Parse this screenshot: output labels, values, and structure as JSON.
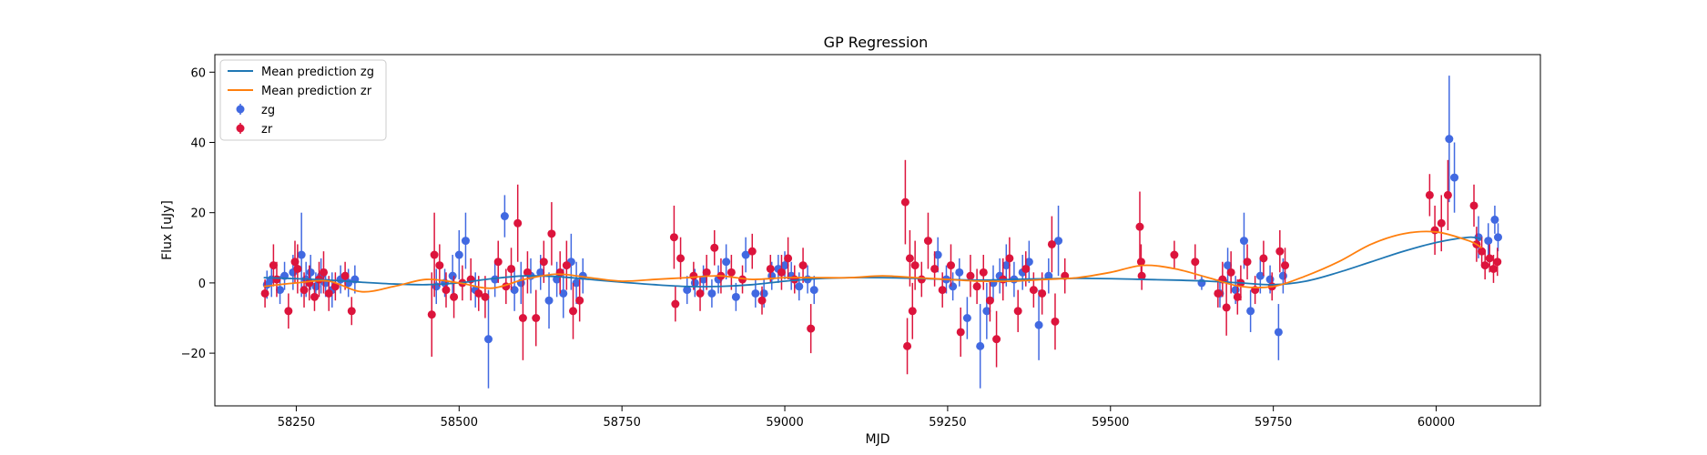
{
  "chart_data": {
    "type": "scatter",
    "title": "GP Regression",
    "xlabel": "MJD",
    "ylabel": "Flux [uJy]",
    "xlim": [
      58125,
      60160
    ],
    "ylim": [
      -35,
      65
    ],
    "xticks": [
      58250,
      58500,
      58750,
      59000,
      59250,
      59500,
      59750,
      60000
    ],
    "yticks": [
      -20,
      0,
      20,
      40,
      60
    ],
    "grid": false,
    "legend_position": "top-left",
    "lines": [
      {
        "name": "Mean prediction zg",
        "color": "#1f77b4",
        "x": [
          58200,
          58250,
          58300,
          58350,
          58400,
          58450,
          58500,
          58550,
          58600,
          58650,
          58700,
          58750,
          58800,
          58850,
          58900,
          58950,
          59000,
          59050,
          59100,
          59150,
          59200,
          59250,
          59300,
          59350,
          59400,
          59450,
          59500,
          59550,
          59600,
          59650,
          59700,
          59750,
          59800,
          59850,
          59900,
          59950,
          60000,
          60050,
          60070
        ],
        "y": [
          1.5,
          1.2,
          0.8,
          0.2,
          -0.3,
          -0.5,
          0.0,
          1.2,
          2.0,
          1.8,
          1.0,
          0.2,
          -0.5,
          -1.0,
          -1.0,
          -0.5,
          0.5,
          1.2,
          1.5,
          1.5,
          1.3,
          1.0,
          0.8,
          1.0,
          1.2,
          1.3,
          1.2,
          1.0,
          0.8,
          0.5,
          0.0,
          -0.5,
          0.5,
          3.0,
          6.0,
          9.0,
          11.5,
          13.0,
          12.5
        ]
      },
      {
        "name": "Mean prediction zr",
        "color": "#ff7f0e",
        "x": [
          58200,
          58250,
          58300,
          58350,
          58400,
          58450,
          58500,
          58550,
          58600,
          58650,
          58700,
          58750,
          58800,
          58850,
          58900,
          58950,
          59000,
          59050,
          59100,
          59150,
          59200,
          59250,
          59300,
          59350,
          59400,
          59450,
          59500,
          59550,
          59600,
          59650,
          59700,
          59750,
          59800,
          59850,
          59900,
          59950,
          60000,
          60050,
          60070
        ],
        "y": [
          -1.0,
          0.0,
          0.5,
          -2.5,
          -1.0,
          1.0,
          0.0,
          -1.5,
          1.0,
          2.5,
          1.5,
          0.5,
          1.0,
          1.5,
          2.0,
          1.0,
          1.5,
          1.5,
          1.5,
          2.0,
          1.5,
          1.0,
          0.5,
          0.5,
          1.0,
          1.5,
          3.0,
          5.0,
          4.0,
          1.5,
          -1.0,
          -1.0,
          2.0,
          6.0,
          11.0,
          14.0,
          14.5,
          12.0,
          10.0
        ]
      }
    ],
    "series": [
      {
        "name": "zg",
        "color": "#4169e1",
        "points": [
          [
            58205,
            -0.5,
            4
          ],
          [
            58212,
            1,
            5
          ],
          [
            58225,
            -2,
            4
          ],
          [
            58232,
            2,
            4
          ],
          [
            58245,
            3,
            5
          ],
          [
            58258,
            8,
            12
          ],
          [
            58265,
            1,
            5
          ],
          [
            58272,
            3,
            5
          ],
          [
            58280,
            -1,
            4
          ],
          [
            58288,
            2,
            5
          ],
          [
            58295,
            0,
            4
          ],
          [
            58305,
            -2,
            5
          ],
          [
            58318,
            1,
            4
          ],
          [
            58330,
            0,
            4
          ],
          [
            58340,
            1,
            4
          ],
          [
            58465,
            -1,
            5
          ],
          [
            58478,
            0,
            4
          ],
          [
            58490,
            2,
            6
          ],
          [
            58500,
            8,
            7
          ],
          [
            58510,
            12,
            8
          ],
          [
            58525,
            -2,
            5
          ],
          [
            58545,
            -16,
            14
          ],
          [
            58555,
            1,
            5
          ],
          [
            58570,
            19,
            6
          ],
          [
            58585,
            -2,
            6
          ],
          [
            58595,
            0,
            6
          ],
          [
            58610,
            2,
            5
          ],
          [
            58625,
            3,
            5
          ],
          [
            58638,
            -5,
            8
          ],
          [
            58650,
            1,
            5
          ],
          [
            58660,
            -3,
            7
          ],
          [
            58672,
            6,
            8
          ],
          [
            58680,
            0,
            6
          ],
          [
            58690,
            2,
            5
          ],
          [
            58850,
            -2,
            4
          ],
          [
            58862,
            0,
            4
          ],
          [
            58875,
            1,
            4
          ],
          [
            58888,
            -3,
            4
          ],
          [
            58898,
            1,
            4
          ],
          [
            58910,
            6,
            5
          ],
          [
            58925,
            -4,
            4
          ],
          [
            58940,
            8,
            5
          ],
          [
            58955,
            -3,
            4
          ],
          [
            58968,
            -3,
            4
          ],
          [
            58980,
            2,
            4
          ],
          [
            58990,
            4,
            4
          ],
          [
            59000,
            5,
            4
          ],
          [
            59010,
            2,
            4
          ],
          [
            59022,
            -1,
            4
          ],
          [
            59035,
            1,
            4
          ],
          [
            59045,
            -2,
            4
          ],
          [
            59235,
            8,
            5
          ],
          [
            59248,
            1,
            4
          ],
          [
            59258,
            -1,
            4
          ],
          [
            59268,
            3,
            4
          ],
          [
            59280,
            -10,
            6
          ],
          [
            59300,
            -18,
            12
          ],
          [
            59310,
            -8,
            8
          ],
          [
            59320,
            0,
            5
          ],
          [
            59330,
            2,
            5
          ],
          [
            59340,
            5,
            6
          ],
          [
            59352,
            1,
            5
          ],
          [
            59365,
            3,
            5
          ],
          [
            59375,
            6,
            6
          ],
          [
            59390,
            -12,
            10
          ],
          [
            59405,
            2,
            5
          ],
          [
            59420,
            12,
            10
          ],
          [
            59640,
            0,
            2
          ],
          [
            59668,
            -3,
            4
          ],
          [
            59680,
            5,
            5
          ],
          [
            59692,
            -2,
            4
          ],
          [
            59705,
            12,
            8
          ],
          [
            59715,
            -8,
            6
          ],
          [
            59730,
            2,
            5
          ],
          [
            59745,
            1,
            4
          ],
          [
            59758,
            -14,
            8
          ],
          [
            59765,
            2,
            5
          ],
          [
            60020,
            41,
            18
          ],
          [
            60028,
            30,
            10
          ],
          [
            60065,
            13,
            6
          ],
          [
            60080,
            12,
            5
          ],
          [
            60090,
            18,
            4
          ],
          [
            60095,
            13,
            4
          ]
        ]
      },
      {
        "name": "zr",
        "color": "#dc143c",
        "points": [
          [
            58202,
            -3,
            4
          ],
          [
            58215,
            5,
            6
          ],
          [
            58220,
            1,
            5
          ],
          [
            58238,
            -8,
            5
          ],
          [
            58248,
            6,
            6
          ],
          [
            58252,
            4,
            7
          ],
          [
            58262,
            -2,
            5
          ],
          [
            58270,
            0,
            5
          ],
          [
            58278,
            -4,
            4
          ],
          [
            58285,
            1,
            5
          ],
          [
            58292,
            3,
            6
          ],
          [
            58300,
            -3,
            5
          ],
          [
            58310,
            -1,
            4
          ],
          [
            58325,
            2,
            4
          ],
          [
            58335,
            -8,
            4
          ],
          [
            58458,
            -9,
            12
          ],
          [
            58462,
            8,
            12
          ],
          [
            58470,
            5,
            6
          ],
          [
            58480,
            -2,
            5
          ],
          [
            58492,
            -4,
            6
          ],
          [
            58505,
            0,
            5
          ],
          [
            58518,
            1,
            6
          ],
          [
            58530,
            -3,
            5
          ],
          [
            58540,
            -4,
            6
          ],
          [
            58560,
            6,
            6
          ],
          [
            58572,
            -1,
            5
          ],
          [
            58580,
            4,
            6
          ],
          [
            58590,
            17,
            11
          ],
          [
            58598,
            -10,
            12
          ],
          [
            58605,
            3,
            6
          ],
          [
            58618,
            -10,
            8
          ],
          [
            58630,
            6,
            6
          ],
          [
            58642,
            14,
            9
          ],
          [
            58655,
            3,
            6
          ],
          [
            58665,
            5,
            7
          ],
          [
            58675,
            -8,
            8
          ],
          [
            58685,
            -5,
            6
          ],
          [
            58830,
            13,
            9
          ],
          [
            58832,
            -6,
            5
          ],
          [
            58840,
            7,
            6
          ],
          [
            58860,
            2,
            4
          ],
          [
            58870,
            -3,
            5
          ],
          [
            58880,
            3,
            5
          ],
          [
            58892,
            10,
            5
          ],
          [
            58902,
            2,
            5
          ],
          [
            58918,
            3,
            5
          ],
          [
            58935,
            1,
            4
          ],
          [
            58950,
            9,
            5
          ],
          [
            58965,
            -5,
            4
          ],
          [
            58978,
            4,
            4
          ],
          [
            58995,
            3,
            5
          ],
          [
            59005,
            7,
            6
          ],
          [
            59015,
            1,
            4
          ],
          [
            59028,
            5,
            5
          ],
          [
            59040,
            -13,
            7
          ],
          [
            59185,
            23,
            12
          ],
          [
            59188,
            -18,
            8
          ],
          [
            59192,
            7,
            8
          ],
          [
            59196,
            -8,
            8
          ],
          [
            59200,
            5,
            7
          ],
          [
            59210,
            1,
            5
          ],
          [
            59220,
            12,
            8
          ],
          [
            59230,
            4,
            5
          ],
          [
            59242,
            -2,
            5
          ],
          [
            59255,
            5,
            6
          ],
          [
            59270,
            -14,
            7
          ],
          [
            59285,
            2,
            6
          ],
          [
            59295,
            -1,
            5
          ],
          [
            59305,
            3,
            5
          ],
          [
            59315,
            -5,
            6
          ],
          [
            59325,
            -16,
            8
          ],
          [
            59335,
            1,
            6
          ],
          [
            59345,
            7,
            6
          ],
          [
            59358,
            -8,
            6
          ],
          [
            59370,
            4,
            5
          ],
          [
            59382,
            -2,
            5
          ],
          [
            59395,
            -3,
            6
          ],
          [
            59410,
            11,
            8
          ],
          [
            59415,
            -11,
            8
          ],
          [
            59430,
            2,
            5
          ],
          [
            59545,
            16,
            10
          ],
          [
            59547,
            6,
            5
          ],
          [
            59548,
            2,
            4
          ],
          [
            59598,
            8,
            4
          ],
          [
            59630,
            6,
            5
          ],
          [
            59665,
            -3,
            4
          ],
          [
            59672,
            1,
            5
          ],
          [
            59678,
            -7,
            8
          ],
          [
            59685,
            3,
            6
          ],
          [
            59695,
            -4,
            5
          ],
          [
            59700,
            0,
            5
          ],
          [
            59710,
            6,
            5
          ],
          [
            59722,
            -2,
            4
          ],
          [
            59735,
            7,
            5
          ],
          [
            59748,
            -1,
            4
          ],
          [
            59760,
            9,
            6
          ],
          [
            59768,
            5,
            5
          ],
          [
            59990,
            25,
            6
          ],
          [
            59998,
            15,
            7
          ],
          [
            60008,
            17,
            8
          ],
          [
            60018,
            25,
            10
          ],
          [
            60058,
            22,
            6
          ],
          [
            60062,
            11,
            5
          ],
          [
            60070,
            9,
            4
          ],
          [
            60075,
            5,
            4
          ],
          [
            60082,
            7,
            4
          ],
          [
            60088,
            4,
            4
          ],
          [
            60094,
            6,
            4
          ]
        ]
      }
    ]
  }
}
